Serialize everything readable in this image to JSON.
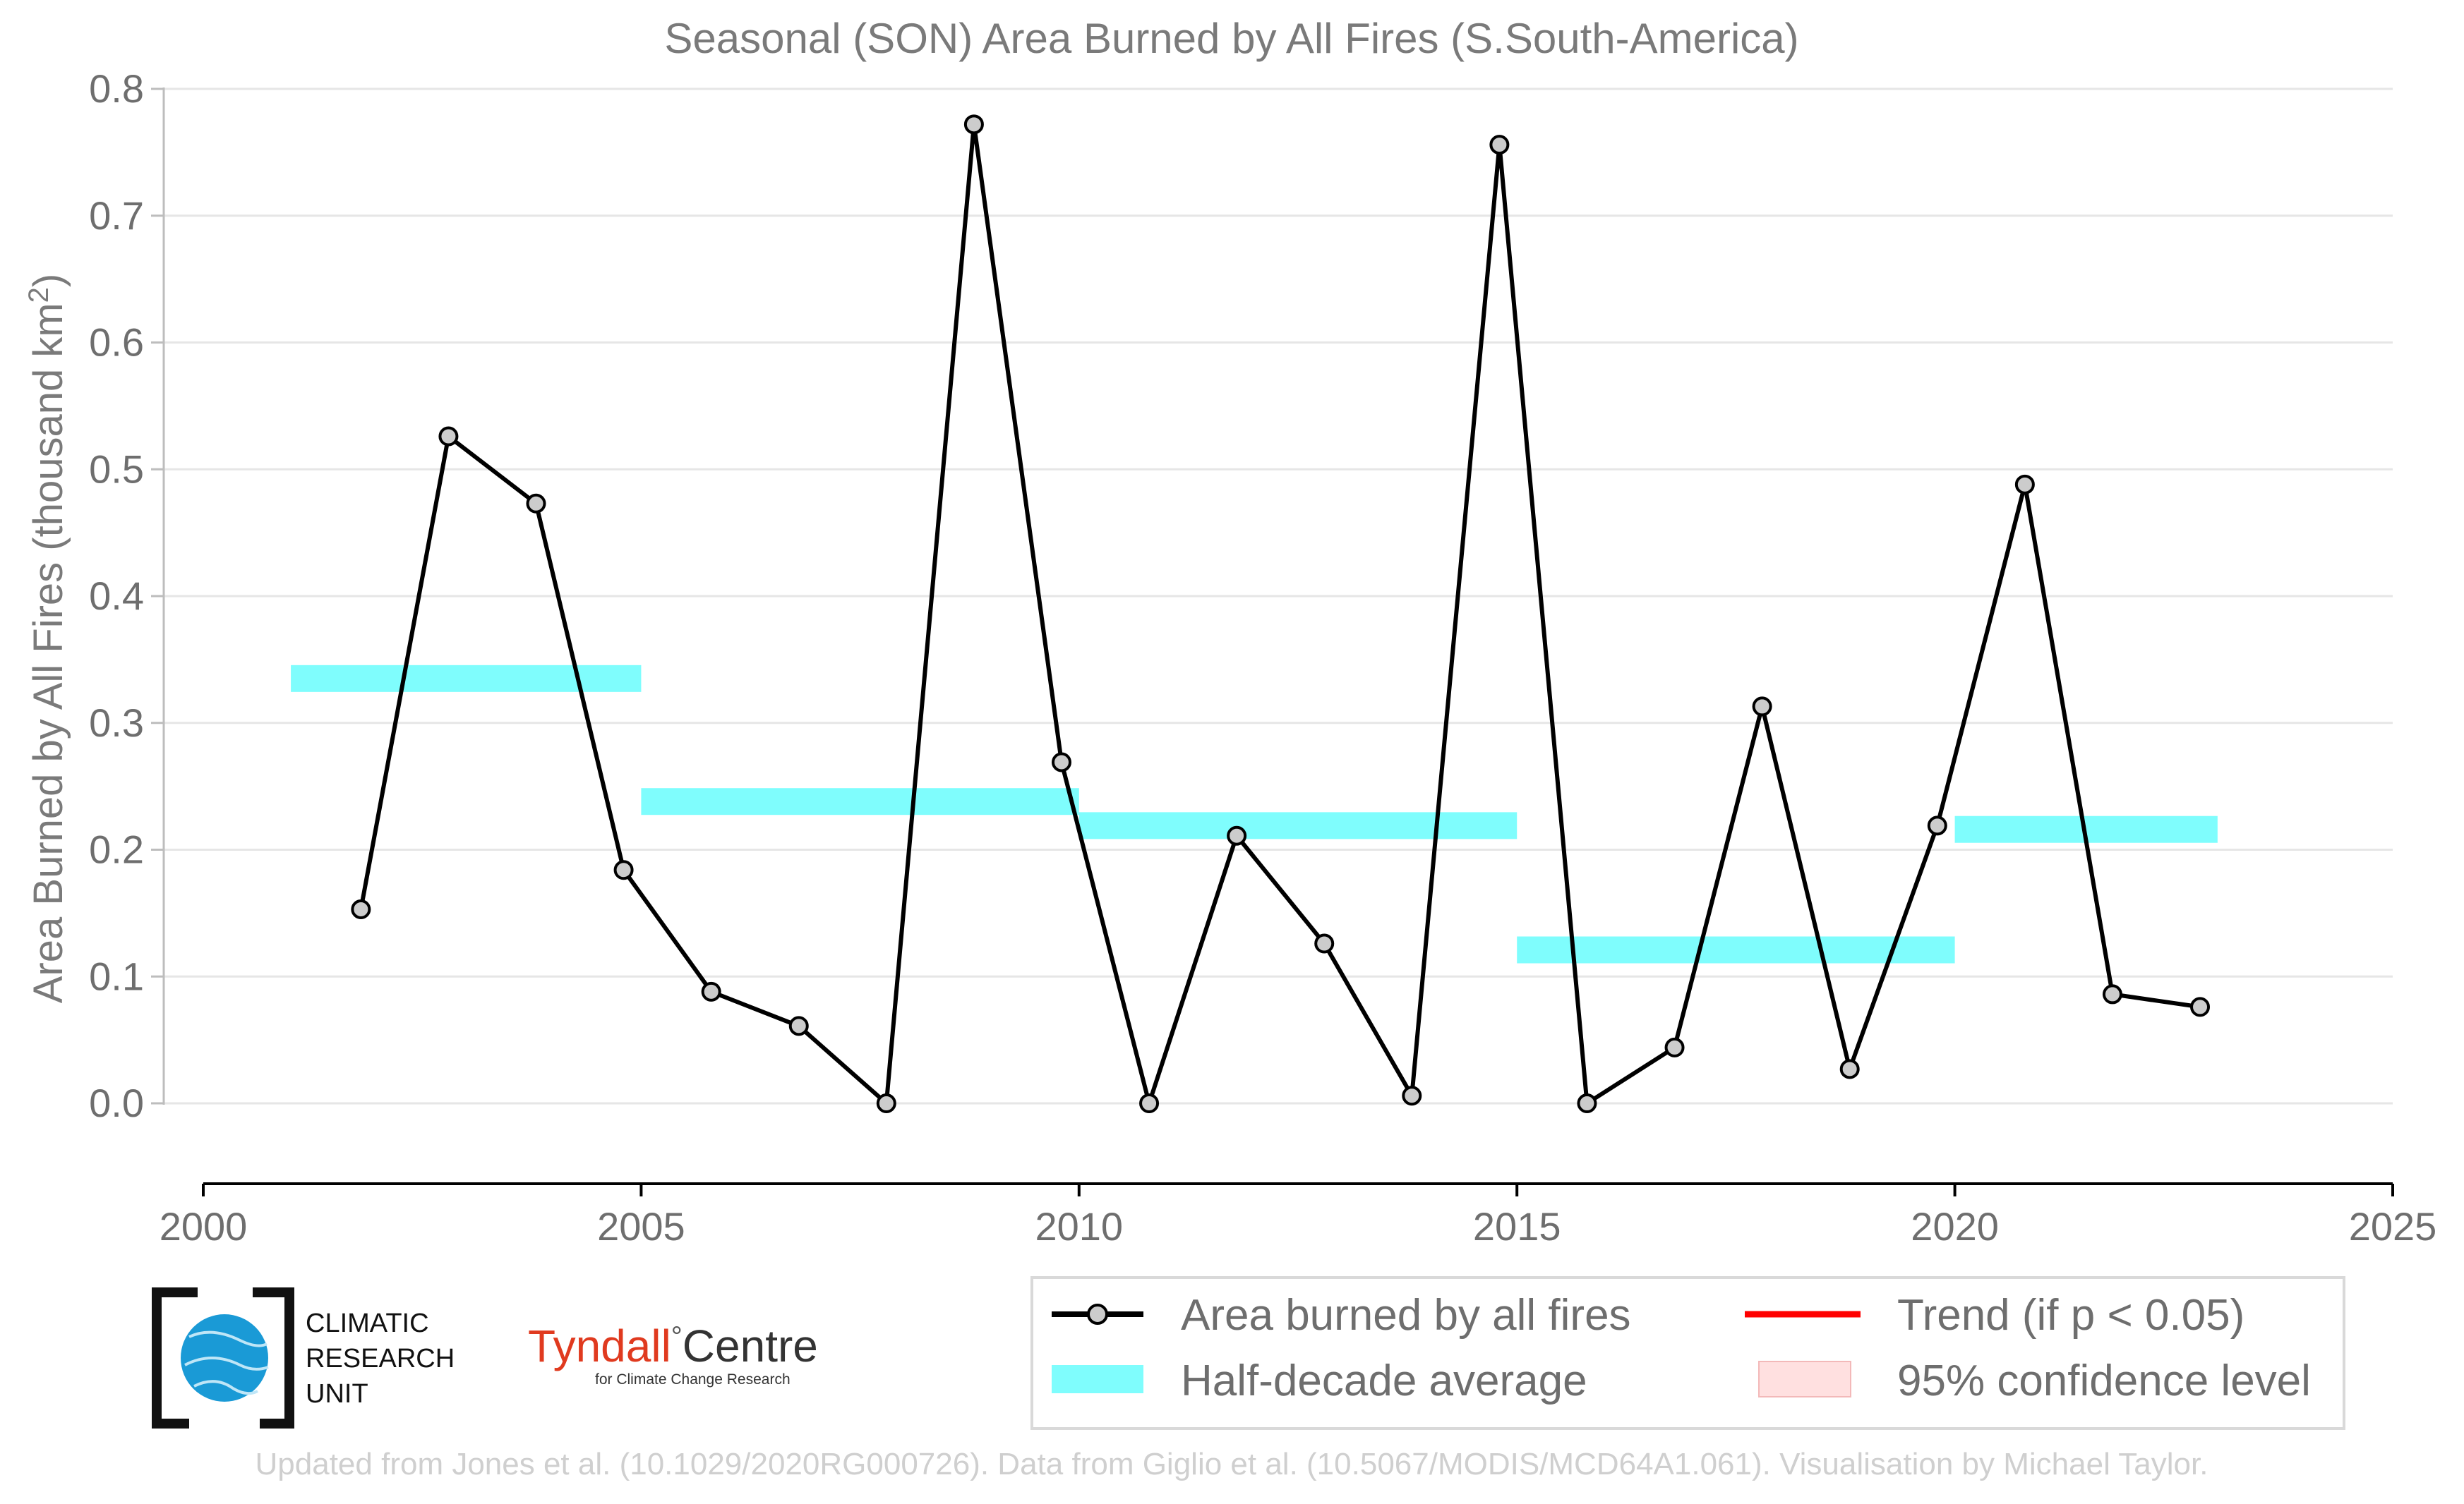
{
  "chart_data": {
    "type": "line",
    "title": "Seasonal (SON) Area Burned by All Fires (S.South-America)",
    "ylabel": "Area Burned by All Fires (thousand km",
    "ylabel_sup": "2",
    "ylabel_close": ")",
    "xlim": [
      2000,
      2025
    ],
    "ylim": [
      0.0,
      0.8
    ],
    "x_ticks": [
      "2000",
      "2005",
      "2010",
      "2015",
      "2020",
      "2025"
    ],
    "x_tick_values": [
      2000,
      2005,
      2010,
      2015,
      2020,
      2025
    ],
    "y_ticks": [
      "0.0",
      "0.1",
      "0.2",
      "0.3",
      "0.4",
      "0.5",
      "0.6",
      "0.7",
      "0.8"
    ],
    "y_tick_values": [
      0,
      0.1,
      0.2,
      0.3,
      0.4,
      0.5,
      0.6,
      0.7,
      0.8
    ],
    "grid": "horizontal",
    "series": [
      {
        "name": "Area burned by all fires",
        "color": "#000000",
        "marker_fill": "#cccccc",
        "x": [
          2001.8,
          2002.8,
          2003.8,
          2004.8,
          2005.8,
          2006.8,
          2007.8,
          2008.8,
          2009.8,
          2010.8,
          2011.8,
          2012.8,
          2013.8,
          2014.8,
          2015.8,
          2016.8,
          2017.8,
          2018.8,
          2019.8,
          2020.8,
          2021.8,
          2022.8
        ],
        "y": [
          0.153,
          0.526,
          0.473,
          0.184,
          0.088,
          0.061,
          0.0,
          0.772,
          0.269,
          0.0,
          0.211,
          0.126,
          0.006,
          0.756,
          0.0,
          0.044,
          0.313,
          0.027,
          0.219,
          0.488,
          0.086,
          0.076
        ]
      }
    ],
    "half_decade_average": {
      "name": "Half-decade average",
      "color": "#7ffdfd",
      "segments": [
        {
          "x0": 2001,
          "x1": 2005,
          "y": 0.335
        },
        {
          "x0": 2005,
          "x1": 2010,
          "y": 0.238
        },
        {
          "x0": 2010,
          "x1": 2015,
          "y": 0.219
        },
        {
          "x0": 2015,
          "x1": 2020,
          "y": 0.121
        },
        {
          "x0": 2020,
          "x1": 2023,
          "y": 0.216
        }
      ]
    },
    "legend": {
      "placement": "bottom-right",
      "entries": [
        {
          "key": "line",
          "label": "Area burned by all fires",
          "color": "#000000"
        },
        {
          "key": "trend",
          "label": "Trend (if p < 0.05)",
          "color": "#ff0000"
        },
        {
          "key": "half",
          "label": "Half-decade average",
          "color": "#7ffdfd"
        },
        {
          "key": "ci",
          "label": "95% confidence level",
          "color": "#ffe0e0"
        }
      ]
    }
  },
  "logos": {
    "cru": [
      "CLIMATIC",
      "RESEARCH",
      "UNIT"
    ],
    "tyndall_main": "Tyndall",
    "tyndall_degree": "°",
    "tyndall_centre": "Centre",
    "tyndall_sub": "for Climate Change Research"
  },
  "credit": "Updated from Jones et al. (10.1029/2020RG000726). Data from Giglio et al. (10.5067/MODIS/MCD64A1.061). Visualisation by Michael Taylor."
}
